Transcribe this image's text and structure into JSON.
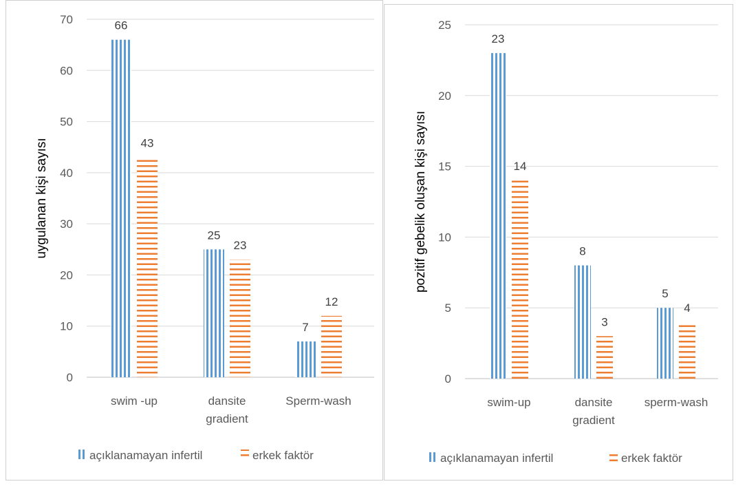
{
  "chart_data": [
    {
      "type": "bar",
      "title": "",
      "xlabel": "",
      "ylabel": "uygulanan kişi sayısı",
      "ylim": [
        0,
        70
      ],
      "yticks": [
        0,
        10,
        20,
        30,
        40,
        50,
        60,
        70
      ],
      "grid": true,
      "legend_position": "bottom",
      "categories": [
        [
          "swim -up"
        ],
        [
          "dansite",
          "gradient"
        ],
        [
          "Sperm-wash"
        ]
      ],
      "series": [
        {
          "name": "açıklanamayan infertil",
          "color": "#5B9BD5",
          "pattern": "vertical-lines",
          "values": [
            66,
            25,
            7
          ]
        },
        {
          "name": "erkek faktör",
          "color": "#ED7D31",
          "pattern": "horizontal-lines",
          "values": [
            43,
            23,
            12
          ]
        }
      ]
    },
    {
      "type": "bar",
      "title": "",
      "xlabel": "",
      "ylabel": "pozitif gebelik oluşan kişi sayısı",
      "ylim": [
        0,
        25
      ],
      "yticks": [
        0,
        5,
        10,
        15,
        20,
        25
      ],
      "grid": true,
      "legend_position": "bottom",
      "categories": [
        [
          "swim-up"
        ],
        [
          "dansite",
          "gradient"
        ],
        [
          "sperm-wash"
        ]
      ],
      "series": [
        {
          "name": "açıklanamayan infertil",
          "color": "#5B9BD5",
          "pattern": "vertical-lines",
          "values": [
            23,
            8,
            5
          ]
        },
        {
          "name": "erkek faktör",
          "color": "#ED7D31",
          "pattern": "horizontal-lines",
          "values": [
            14,
            3,
            4
          ]
        }
      ]
    }
  ]
}
